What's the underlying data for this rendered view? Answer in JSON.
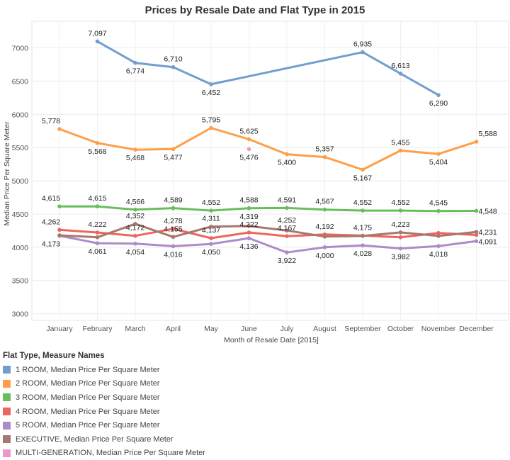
{
  "chart_data": {
    "type": "line",
    "title": "Prices by Resale Date and Flat Type in 2015",
    "xlabel": "Month of Resale Date [2015]",
    "ylabel": "Median Price Per Square Meter",
    "ylim": [
      2900,
      7400
    ],
    "yticks": [
      3000,
      3500,
      4000,
      4500,
      5000,
      5500,
      6000,
      6500,
      7000
    ],
    "ytick_labels": [
      "3000",
      "3500",
      "4000",
      "4500",
      "5000",
      "5500",
      "6000",
      "6500",
      "7000"
    ],
    "categories": [
      "January",
      "February",
      "March",
      "April",
      "May",
      "June",
      "July",
      "August",
      "September",
      "October",
      "November",
      "December"
    ],
    "grid": true,
    "legend_title": "Flat Type, Measure Names",
    "legend_position": "bottom-left",
    "series": [
      {
        "name": "1 ROOM, Median Price Per Square Meter",
        "color": "#729ece",
        "values": [
          null,
          7097,
          6774,
          6710,
          6452,
          null,
          null,
          null,
          6935,
          6613,
          6290,
          null
        ],
        "labels": [
          "",
          "7,097",
          "6,774",
          "6,710",
          "6,452",
          "",
          "",
          "",
          "6,935",
          "6,613",
          "6,290",
          ""
        ]
      },
      {
        "name": "2 ROOM, Median Price Per Square Meter",
        "color": "#ff9e4a",
        "values": [
          5778,
          5568,
          5468,
          5477,
          5795,
          5625,
          5400,
          5357,
          5167,
          5455,
          5404,
          5588
        ],
        "labels": [
          "5,778",
          "5,568",
          "5,468",
          "5,477",
          "5,795",
          "5,625",
          "5,400",
          "5,357",
          "5,167",
          "5,455",
          "5,404",
          "5,588"
        ]
      },
      {
        "name": "3 ROOM, Median Price Per Square Meter",
        "color": "#67bf5c",
        "values": [
          4615,
          4615,
          4566,
          4589,
          4552,
          4588,
          4591,
          4567,
          4552,
          4552,
          4545,
          4548
        ],
        "labels": [
          "4,615",
          "4,615",
          "4,566",
          "4,589",
          "4,552",
          "4,588",
          "4,591",
          "4,567",
          "4,552",
          "4,552",
          "4,545",
          "4,548"
        ]
      },
      {
        "name": "4 ROOM, Median Price Per Square Meter",
        "color": "#ed665d",
        "values": [
          4262,
          4222,
          4172,
          4278,
          4137,
          4222,
          4167,
          4192,
          4175,
          4150,
          4215,
          4185
        ],
        "labels": [
          "4,262",
          "4,222",
          "4,172",
          "4,278",
          "4,137",
          "4,222",
          "4,167",
          "4,192",
          "4,175",
          "",
          "",
          ""
        ]
      },
      {
        "name": "5 ROOM, Median Price Per Square Meter",
        "color": "#ad8bc9",
        "values": [
          4173,
          4061,
          4054,
          4016,
          4050,
          4136,
          3922,
          4000,
          4028,
          3982,
          4018,
          4091
        ],
        "labels": [
          "4,173",
          "4,061",
          "4,054",
          "4,016",
          "4,050",
          "4,136",
          "3,922",
          "4,000",
          "4,028",
          "3,982",
          "4,018",
          "4,091"
        ]
      },
      {
        "name": "EXECUTIVE, Median Price Per Square Meter",
        "color": "#a8786e",
        "values": [
          4180,
          4150,
          4352,
          4155,
          4311,
          4319,
          4252,
          4160,
          4170,
          4223,
          4170,
          4231
        ],
        "labels": [
          "",
          "",
          "4,352",
          "4,155",
          "4,311",
          "4,319",
          "4,252",
          "",
          "",
          "4,223",
          "",
          "4,231"
        ]
      },
      {
        "name": "MULTI-GENERATION, Median Price Per Square Meter",
        "color": "#ed97ca",
        "values": [
          null,
          null,
          null,
          null,
          null,
          5476,
          null,
          null,
          null,
          null,
          null,
          null
        ],
        "labels": [
          "",
          "",
          "",
          "",
          "",
          "5,476",
          "",
          "",
          "",
          "",
          "",
          ""
        ]
      }
    ]
  }
}
